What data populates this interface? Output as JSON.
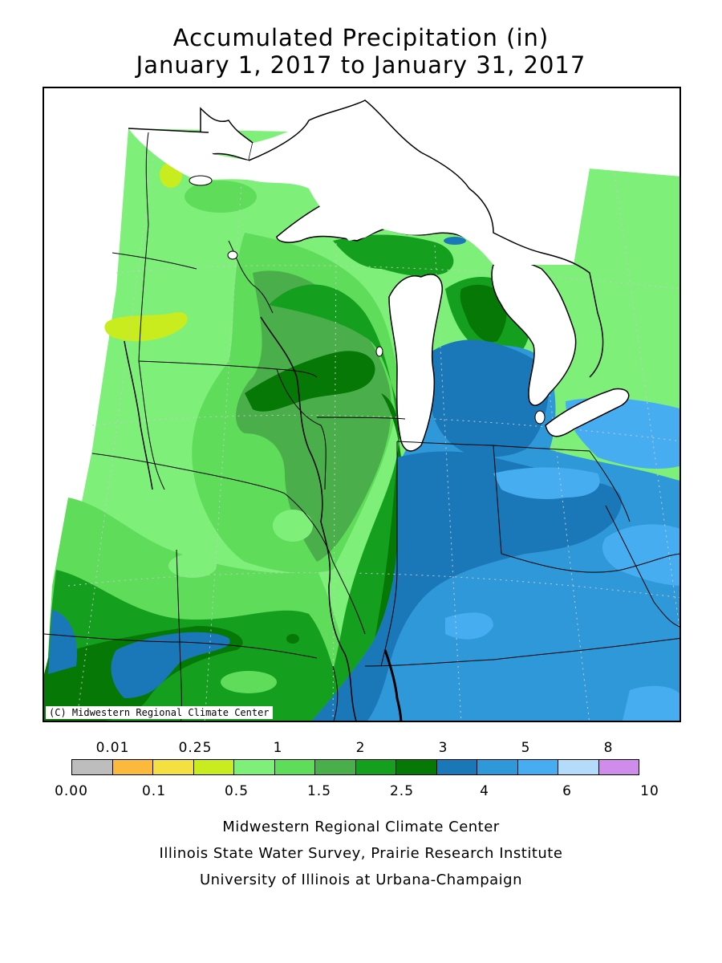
{
  "title_line1": "Accumulated Precipitation (in)",
  "title_line2": "January 1, 2017 to January 31, 2017",
  "copyright": "(C) Midwestern Regional Climate Center",
  "legend": {
    "top_labels": [
      "0.01",
      "0.25",
      "1",
      "2",
      "3",
      "5",
      "8"
    ],
    "bottom_labels": [
      "0.00",
      "0.1",
      "0.5",
      "1.5",
      "2.5",
      "4",
      "6",
      "10"
    ],
    "colors": [
      "#bdbdbd",
      "#fcba3c",
      "#f5e041",
      "#c8ec1e",
      "#7ef07a",
      "#5fdc5a",
      "#4aae4a",
      "#14a01e",
      "#057805",
      "#1b78b8",
      "#2e98d8",
      "#46aef0",
      "#b4dcfa",
      "#d08ceb"
    ]
  },
  "credits": [
    "Midwestern Regional Climate Center",
    "Illinois State Water Survey, Prairie Research Institute",
    "University of Illinois at Urbana-Champaign"
  ],
  "map_colors": {
    "lake": "#ffffff",
    "border": "#000000",
    "grid": "#c8c8c8"
  }
}
